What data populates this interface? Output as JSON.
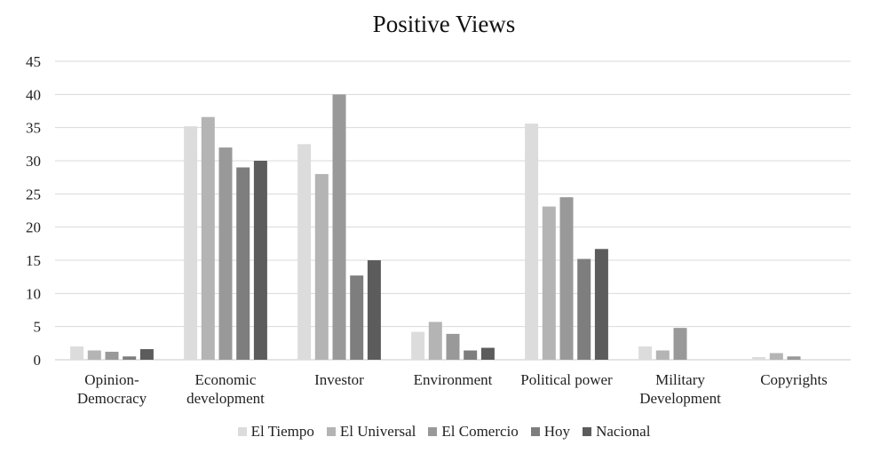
{
  "chart_data": {
    "type": "bar",
    "title": "Positive Views",
    "categories": [
      "Opinion-\nDemocracy",
      "Economic\ndevelopment",
      "Investor",
      "Environment",
      "Political power",
      "Military\nDevelopment",
      "Copyrights"
    ],
    "series": [
      {
        "name": "El Tiempo",
        "color": "#dcdcdc",
        "values": [
          2.0,
          35.2,
          32.5,
          4.2,
          35.6,
          2.0,
          0.4
        ]
      },
      {
        "name": "El Universal",
        "color": "#b4b4b4",
        "values": [
          1.4,
          36.6,
          28.0,
          5.7,
          23.1,
          1.4,
          1.0
        ]
      },
      {
        "name": "El Comercio",
        "color": "#999999",
        "values": [
          1.2,
          32.0,
          40.0,
          3.9,
          24.5,
          4.8,
          0.5
        ]
      },
      {
        "name": "Hoy",
        "color": "#7e7e7e",
        "values": [
          0.5,
          29.0,
          12.7,
          1.4,
          15.2,
          0,
          0
        ]
      },
      {
        "name": "Nacional",
        "color": "#5c5c5c",
        "values": [
          1.6,
          30.0,
          15.0,
          1.8,
          16.7,
          0,
          0
        ]
      }
    ],
    "ylim": [
      0,
      45
    ],
    "yticks": [
      0,
      5,
      10,
      15,
      20,
      25,
      30,
      35,
      40,
      45
    ],
    "grid": true,
    "legend_position": "bottom",
    "xlabel": "",
    "ylabel": ""
  }
}
